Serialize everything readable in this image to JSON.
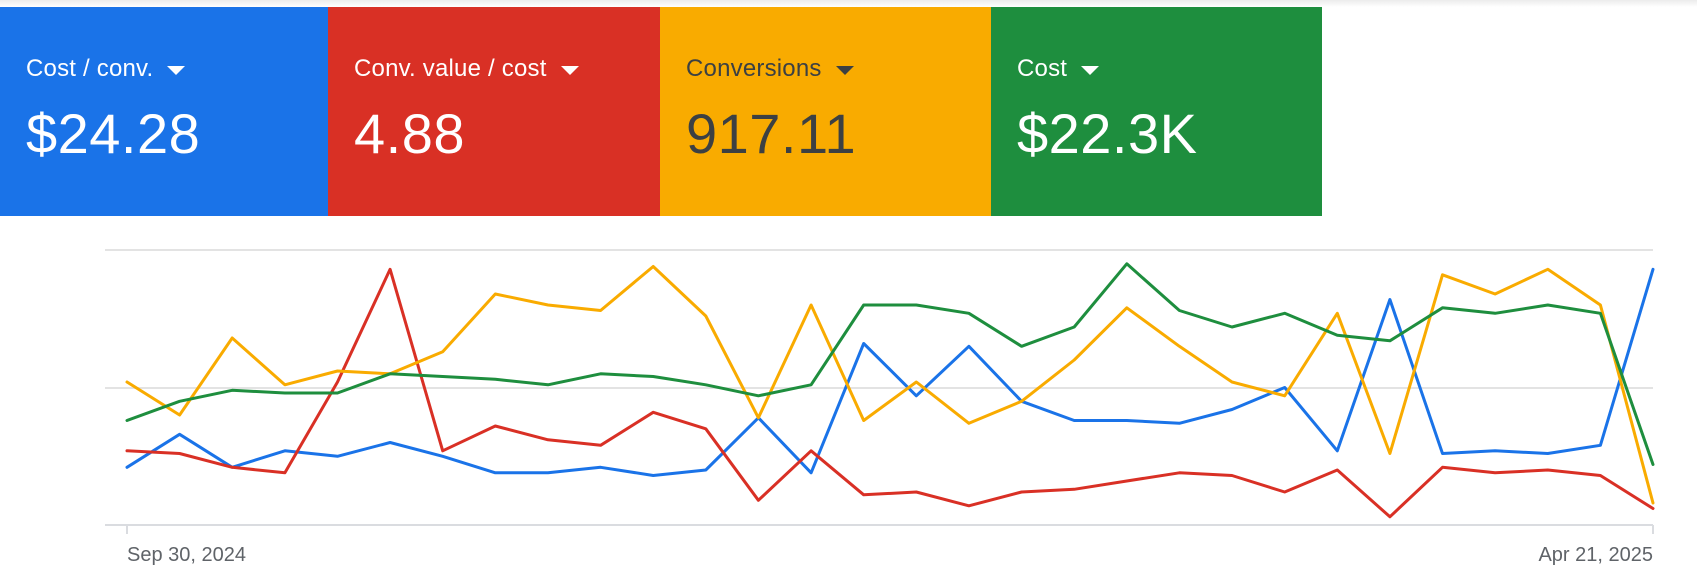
{
  "scorecards": [
    {
      "label": "Cost / conv.",
      "value": "$24.28",
      "color": "#1a73e8",
      "text_color": "#ffffff"
    },
    {
      "label": "Conv. value / cost",
      "value": "4.88",
      "color": "#d93025",
      "text_color": "#ffffff"
    },
    {
      "label": "Conversions",
      "value": "917.11",
      "color": "#f9ab00",
      "text_color": "#3c4043"
    },
    {
      "label": "Cost",
      "value": "$22.3K",
      "color": "#1e8e3e",
      "text_color": "#ffffff"
    }
  ],
  "icons": {
    "dropdown": "caret-down-icon"
  },
  "chart_data": {
    "type": "line",
    "x_ticks": [
      "Sep 30, 2024",
      "Apr 21, 2025"
    ],
    "grid": true,
    "y_range": [
      0,
      100
    ],
    "series": [
      {
        "metric": "Cost / conv.",
        "color": "#1a73e8",
        "values": [
          21,
          33,
          21,
          27,
          25,
          30,
          25,
          19,
          19,
          21,
          18,
          20,
          39,
          19,
          66,
          47,
          65,
          45,
          38,
          38,
          37,
          42,
          50,
          27,
          82,
          26,
          27,
          26,
          29,
          93
        ]
      },
      {
        "metric": "Conv. value / cost",
        "color": "#d93025",
        "values": [
          27,
          26,
          21,
          19,
          52,
          93,
          27,
          36,
          31,
          29,
          41,
          35,
          9,
          27,
          11,
          12,
          7,
          12,
          13,
          16,
          19,
          18,
          12,
          20,
          3,
          21,
          19,
          20,
          18,
          6
        ]
      },
      {
        "metric": "Conversions",
        "color": "#f9ab00",
        "values": [
          52,
          40,
          68,
          51,
          56,
          55,
          63,
          84,
          80,
          78,
          94,
          76,
          39,
          80,
          38,
          52,
          37,
          45,
          60,
          79,
          65,
          52,
          47,
          77,
          26,
          91,
          84,
          93,
          80,
          8
        ]
      },
      {
        "metric": "Cost",
        "color": "#1e8e3e",
        "values": [
          38,
          45,
          49,
          48,
          48,
          55,
          54,
          53,
          51,
          55,
          54,
          51,
          47,
          51,
          80,
          80,
          77,
          65,
          72,
          95,
          78,
          72,
          77,
          69,
          67,
          79,
          77,
          80,
          77,
          22
        ]
      }
    ]
  }
}
